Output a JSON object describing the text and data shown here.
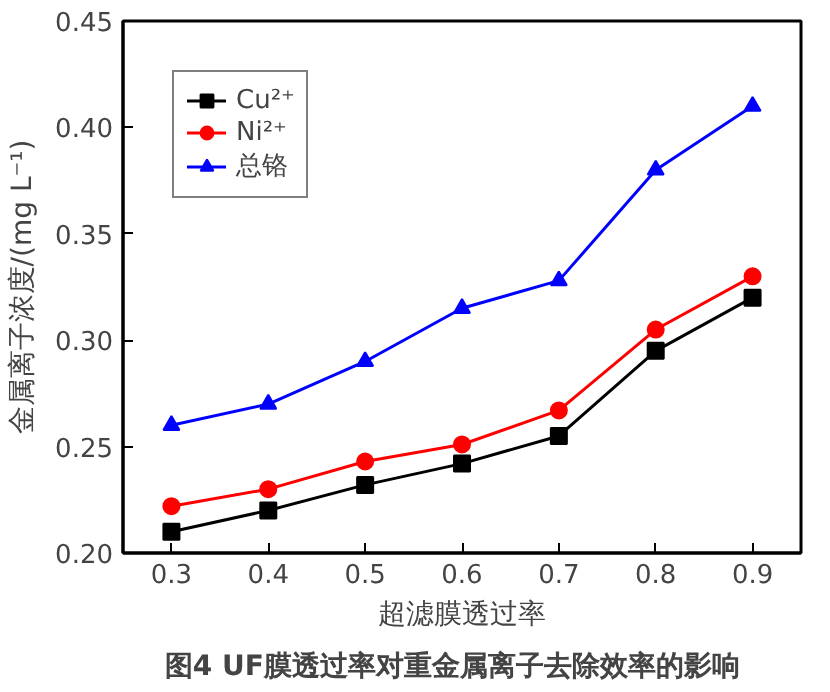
{
  "chart_data": {
    "type": "line",
    "title": "图4   UF膜透过率对重金属离子去除效率的影响",
    "xlabel": "超滤膜透过率",
    "ylabel": "金属离子浓度/(mg L⁻¹)",
    "x": [
      0.3,
      0.4,
      0.5,
      0.6,
      0.7,
      0.8,
      0.9
    ],
    "series": [
      {
        "name": "Cu²⁺",
        "color": "#000000",
        "marker": "square",
        "values": [
          0.21,
          0.22,
          0.232,
          0.242,
          0.255,
          0.295,
          0.32
        ]
      },
      {
        "name": "Ni²⁺",
        "color": "#ff0000",
        "marker": "circle",
        "values": [
          0.222,
          0.23,
          0.243,
          0.251,
          0.267,
          0.305,
          0.33
        ]
      },
      {
        "name": "总铬",
        "color": "#0000ff",
        "marker": "triangle",
        "values": [
          0.26,
          0.27,
          0.29,
          0.315,
          0.328,
          0.38,
          0.41
        ]
      }
    ],
    "xlim": [
      0.25,
      0.95
    ],
    "ylim": [
      0.2,
      0.45
    ],
    "xticks": [
      0.3,
      0.4,
      0.5,
      0.6,
      0.7,
      0.8,
      0.9
    ],
    "yticks": [
      {
        "value": 0.2,
        "label": "0.20"
      },
      {
        "value": 0.25,
        "label": "0.25"
      },
      {
        "value": 0.3,
        "label": "0.30"
      },
      {
        "value": 0.35,
        "label": "0.35"
      },
      {
        "value": 0.4,
        "label": "0.40"
      },
      {
        "value": 0.45,
        "label": "0.45"
      }
    ],
    "grid": false,
    "legend": "top left",
    "line_style": "solid"
  }
}
